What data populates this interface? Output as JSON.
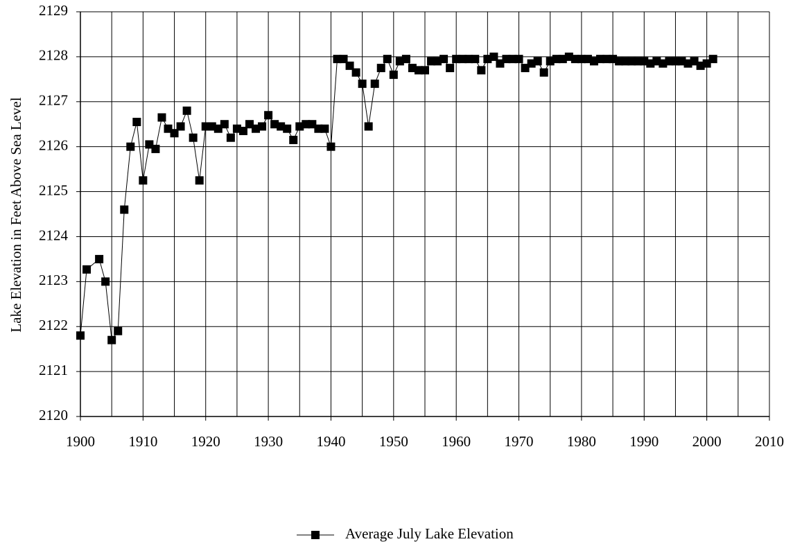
{
  "chart_data": {
    "type": "line",
    "y_label": "Lake Elevation in Feet Above Sea Level",
    "x": [
      1900,
      1901,
      1903,
      1904,
      1905,
      1906,
      1907,
      1908,
      1909,
      1910,
      1911,
      1912,
      1913,
      1914,
      1915,
      1916,
      1917,
      1918,
      1919,
      1920,
      1921,
      1922,
      1923,
      1924,
      1925,
      1926,
      1927,
      1928,
      1929,
      1930,
      1931,
      1932,
      1933,
      1934,
      1935,
      1936,
      1937,
      1938,
      1939,
      1940,
      1941,
      1942,
      1943,
      1944,
      1945,
      1946,
      1947,
      1948,
      1949,
      1950,
      1951,
      1952,
      1953,
      1954,
      1955,
      1956,
      1957,
      1958,
      1959,
      1960,
      1961,
      1962,
      1963,
      1964,
      1965,
      1966,
      1967,
      1968,
      1969,
      1970,
      1971,
      1972,
      1973,
      1974,
      1975,
      1976,
      1977,
      1978,
      1979,
      1980,
      1981,
      1982,
      1983,
      1984,
      1985,
      1986,
      1987,
      1988,
      1989,
      1990,
      1991,
      1992,
      1993,
      1994,
      1995,
      1996,
      1997,
      1998,
      1999,
      2000,
      2001
    ],
    "series": [
      {
        "name": "Average July Lake Elevation",
        "color": "#000000",
        "values": [
          2121.8,
          2123.27,
          2123.5,
          2123.0,
          2121.7,
          2121.9,
          2124.6,
          2126.0,
          2126.55,
          2125.25,
          2126.05,
          2125.95,
          2126.65,
          2126.4,
          2126.3,
          2126.45,
          2126.8,
          2126.2,
          2125.25,
          2126.45,
          2126.45,
          2126.4,
          2126.5,
          2126.2,
          2126.4,
          2126.35,
          2126.5,
          2126.4,
          2126.45,
          2126.7,
          2126.5,
          2126.45,
          2126.4,
          2126.15,
          2126.45,
          2126.5,
          2126.5,
          2126.4,
          2126.4,
          2126.0,
          2127.95,
          2127.95,
          2127.8,
          2127.65,
          2127.4,
          2126.45,
          2127.4,
          2127.75,
          2127.95,
          2127.6,
          2127.9,
          2127.95,
          2127.75,
          2127.7,
          2127.7,
          2127.9,
          2127.9,
          2127.95,
          2127.75,
          2127.95,
          2127.95,
          2127.95,
          2127.95,
          2127.7,
          2127.95,
          2128.0,
          2127.85,
          2127.95,
          2127.95,
          2127.95,
          2127.75,
          2127.85,
          2127.9,
          2127.65,
          2127.9,
          2127.95,
          2127.95,
          2128.0,
          2127.95,
          2127.95,
          2127.95,
          2127.9,
          2127.95,
          2127.95,
          2127.95,
          2127.9,
          2127.9,
          2127.9,
          2127.9,
          2127.9,
          2127.85,
          2127.9,
          2127.85,
          2127.9,
          2127.9,
          2127.9,
          2127.85,
          2127.9,
          2127.8,
          2127.85,
          2127.95
        ]
      }
    ],
    "xlim": [
      1900,
      2010
    ],
    "xticks": [
      1900,
      1910,
      1920,
      1930,
      1940,
      1950,
      1960,
      1970,
      1980,
      1990,
      2000,
      2010
    ],
    "x_minor_ticks": [
      1905,
      1915,
      1925,
      1935,
      1945,
      1955,
      1965,
      1975,
      1985,
      1995,
      2005
    ],
    "ylim": [
      2120,
      2129
    ],
    "yticks": [
      2120,
      2121,
      2122,
      2123,
      2124,
      2125,
      2126,
      2127,
      2128,
      2129
    ],
    "grid": true,
    "legend": "bottom",
    "marker": "square"
  }
}
